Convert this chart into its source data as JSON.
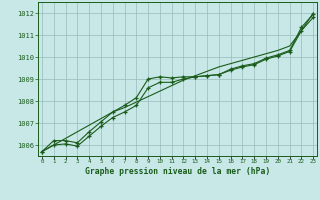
{
  "title": "Graphe pression niveau de la mer (hPa)",
  "bg_color": "#c8e8e8",
  "grid_color": "#99bbbb",
  "line_color": "#1a5c1a",
  "x_labels": [
    "0",
    "1",
    "2",
    "3",
    "4",
    "5",
    "6",
    "7",
    "8",
    "9",
    "10",
    "11",
    "12",
    "13",
    "14",
    "15",
    "16",
    "17",
    "18",
    "19",
    "20",
    "21",
    "22",
    "23"
  ],
  "ylim": [
    1005.5,
    1012.5
  ],
  "yticks": [
    1006,
    1007,
    1008,
    1009,
    1010,
    1011,
    1012
  ],
  "series_smooth": [
    1005.7,
    1006.0,
    1006.3,
    1006.6,
    1006.9,
    1007.2,
    1007.5,
    1007.7,
    1007.95,
    1008.2,
    1008.45,
    1008.7,
    1008.95,
    1009.15,
    1009.35,
    1009.55,
    1009.7,
    1009.85,
    1010.0,
    1010.15,
    1010.3,
    1010.5,
    1011.2,
    1012.0
  ],
  "series_upper": [
    1005.7,
    1006.2,
    1006.2,
    1006.1,
    1006.6,
    1007.05,
    1007.5,
    1007.8,
    1008.15,
    1009.0,
    1009.1,
    1009.05,
    1009.1,
    1009.1,
    1009.15,
    1009.2,
    1009.45,
    1009.6,
    1009.7,
    1009.95,
    1010.1,
    1010.3,
    1011.35,
    1011.95
  ],
  "series_lower": [
    1005.7,
    1006.0,
    1006.05,
    1005.95,
    1006.4,
    1006.85,
    1007.25,
    1007.5,
    1007.8,
    1008.6,
    1008.85,
    1008.85,
    1009.0,
    1009.1,
    1009.15,
    1009.2,
    1009.4,
    1009.55,
    1009.65,
    1009.9,
    1010.05,
    1010.25,
    1011.2,
    1011.8
  ]
}
